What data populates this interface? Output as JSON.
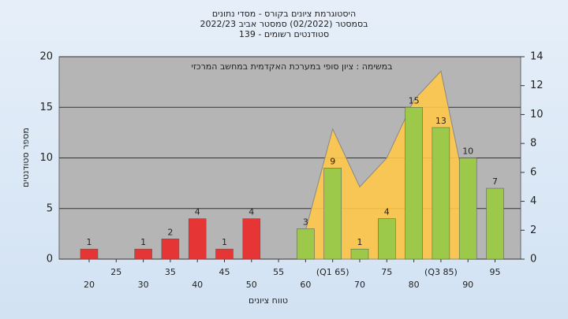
{
  "chart_data": {
    "type": "bar",
    "title": [
      "היסטוגרמת ציונים בקורס - מסדי נתונים",
      "בסמסטר  (02/2022)  סמסטר אביב 2022/23",
      "סטודנטים רשומים - 139"
    ],
    "annotation": "במשימה : ציון סופי במערכת האקדמית במחשב המרכזי",
    "y_label": "מספר סטודנטים",
    "x_label": "טווח ציונים",
    "categories": [
      "20",
      "25",
      "30",
      "35",
      "40",
      "45",
      "50",
      "55",
      "60",
      "(Q1 65)",
      "70",
      "75",
      "80",
      "(Q3 85)",
      "90",
      "95"
    ],
    "values": [
      1,
      null,
      1,
      2,
      4,
      1,
      4,
      null,
      3,
      9,
      1,
      4,
      15,
      13,
      10,
      7
    ],
    "colors": [
      "#e53535",
      "#e53535",
      "#e53535",
      "#e53535",
      "#e53535",
      "#e53535",
      "#e53535",
      "#e53535",
      "#9cc94a",
      "#9cc94a",
      "#9cc94a",
      "#9cc94a",
      "#9cc94a",
      "#9cc94a",
      "#9cc94a",
      "#9cc94a"
    ],
    "area": {
      "color": "#ffc84a",
      "axis": "y2",
      "values": [
        null,
        null,
        null,
        null,
        null,
        null,
        null,
        null,
        2,
        9,
        5,
        7,
        11,
        13,
        4,
        null
      ]
    },
    "ylim": [
      0,
      20
    ],
    "yticks": [
      0,
      5,
      10,
      15,
      20
    ],
    "y2lim": [
      0,
      14
    ],
    "y2ticks": [
      0,
      2,
      4,
      6,
      8,
      10,
      12,
      14
    ],
    "grid": true
  }
}
